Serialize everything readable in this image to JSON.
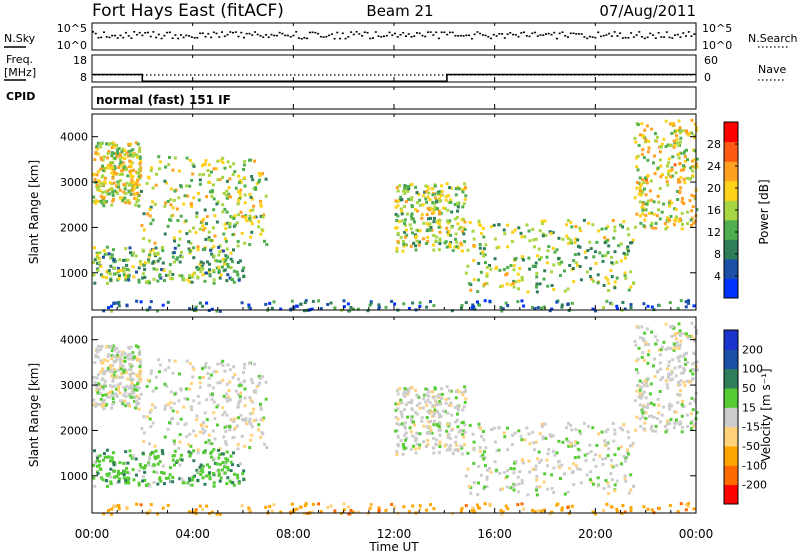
{
  "header": {
    "station": "Fort Hays East (fitACF)",
    "beam": "Beam 21",
    "date": "07/Aug/2011"
  },
  "colors": {
    "power": [
      "#0033ff",
      "#1b4fa8",
      "#2e7d5b",
      "#4fae4f",
      "#a8d642",
      "#ffd21a",
      "#ffa020",
      "#ff5a14",
      "#ff0000"
    ],
    "velocity": [
      "#ff0000",
      "#ff6a00",
      "#ffa500",
      "#ffd27a",
      "#cccccc",
      "#55cc33",
      "#2e7d5b",
      "#1b4fa8",
      "#1a33cc"
    ]
  },
  "chart_data": [
    {
      "type": "line",
      "name": "noise-panel",
      "left_label": "N.Sky",
      "right_label": "N.Search",
      "left_ticks": [
        "10^5",
        "10^0"
      ],
      "right_ticks": [
        "10^5",
        "10^0"
      ],
      "xlim": [
        "00:00",
        "24:00"
      ]
    },
    {
      "type": "line",
      "name": "frequency-panel",
      "left_label_1": "Freq.",
      "left_label_2": "[MHz]",
      "right_label": "Nave",
      "left_ticks": [
        18,
        8
      ],
      "right_ticks": [
        60,
        0
      ],
      "series": [
        {
          "name": "Freq.",
          "x": [
            0,
            2.0,
            2.0,
            14.1,
            14.1,
            24
          ],
          "values": [
            13.0,
            13.0,
            10.5,
            10.5,
            13.0,
            13.0
          ]
        }
      ]
    },
    {
      "type": "table",
      "name": "cpid-panel",
      "label": "CPID",
      "text": "normal (fast) 151 IF"
    },
    {
      "type": "heatmap",
      "name": "power-panel",
      "ylabel": "Slant Range [km]",
      "yticks": [
        1000,
        2000,
        3000,
        4000
      ],
      "ylim": [
        180,
        4500
      ],
      "colorbar_label": "Power [dB]",
      "colorbar_ticks": [
        4,
        8,
        12,
        16,
        20,
        24,
        28
      ],
      "colorbar_range": [
        0,
        32
      ]
    },
    {
      "type": "heatmap",
      "name": "velocity-panel",
      "ylabel": "Slant Range [km]",
      "yticks": [
        1000,
        2000,
        3000,
        4000
      ],
      "ylim": [
        180,
        4500
      ],
      "colorbar_label": "Velocity [m s⁻¹]",
      "colorbar_ticks": [
        "200",
        "100",
        "50",
        "15",
        "-15",
        "-50",
        "-100",
        "-200"
      ]
    }
  ],
  "xaxis": {
    "label": "Time UT",
    "ticks": [
      "00:00",
      "04:00",
      "08:00",
      "12:00",
      "16:00",
      "20:00",
      "00:00"
    ]
  },
  "echo_regions": [
    {
      "t": [
        0.0,
        1.9
      ],
      "r": [
        2500,
        3900
      ],
      "pw": 18,
      "vel": 4
    },
    {
      "t": [
        1.9,
        6.9
      ],
      "r": [
        1600,
        3600
      ],
      "pw": 16,
      "vel": 4
    },
    {
      "t": [
        0.0,
        6.0
      ],
      "r": [
        800,
        1600
      ],
      "pw": 13,
      "vel": 5
    },
    {
      "t": [
        12.0,
        14.8
      ],
      "r": [
        1500,
        3000
      ],
      "pw": 16,
      "vel": 4
    },
    {
      "t": [
        14.8,
        21.5
      ],
      "r": [
        600,
        2200
      ],
      "pw": 15,
      "vel": 4
    },
    {
      "t": [
        21.5,
        24.0
      ],
      "r": [
        2000,
        4400
      ],
      "pw": 18,
      "vel": 4
    },
    {
      "t": [
        0.0,
        24.0
      ],
      "r": [
        180,
        420
      ],
      "pw": 8,
      "vel": 2
    }
  ]
}
